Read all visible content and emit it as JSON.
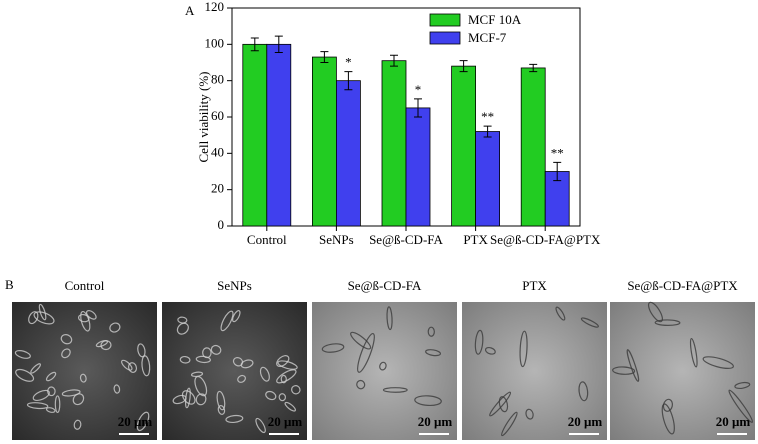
{
  "chart_data": {
    "type": "bar",
    "panel_label": "A",
    "y_label": "Cell viability (%)",
    "categories": [
      "Control",
      "SeNPs",
      "Se@ß-CD-FA",
      "PTX",
      "Se@ß-CD-FA@PTX"
    ],
    "series": [
      {
        "name": "MCF 10A",
        "color": "#22cc22",
        "values": [
          100,
          93,
          91,
          88,
          87
        ],
        "errors": [
          3.5,
          3,
          3,
          3,
          2
        ]
      },
      {
        "name": "MCF-7",
        "color": "#4040ee",
        "values": [
          100,
          80,
          65,
          52,
          30
        ],
        "errors": [
          4.5,
          5,
          5,
          3,
          5
        ],
        "annotations": [
          null,
          "*",
          "*",
          "**",
          "**"
        ]
      }
    ],
    "ylim": [
      0,
      120
    ],
    "yticks": [
      0,
      20,
      40,
      60,
      80,
      100,
      120
    ],
    "legend": "upper right"
  },
  "panel_b": {
    "label": "B",
    "images": [
      {
        "title": "Control",
        "scale": "20 μm"
      },
      {
        "title": "SeNPs",
        "scale": "20 μm"
      },
      {
        "title": "Se@ß-CD-FA",
        "scale": "20 μm"
      },
      {
        "title": "PTX",
        "scale": "20 μm"
      },
      {
        "title": "Se@ß-CD-FA@PTX",
        "scale": "20 μm"
      }
    ]
  }
}
